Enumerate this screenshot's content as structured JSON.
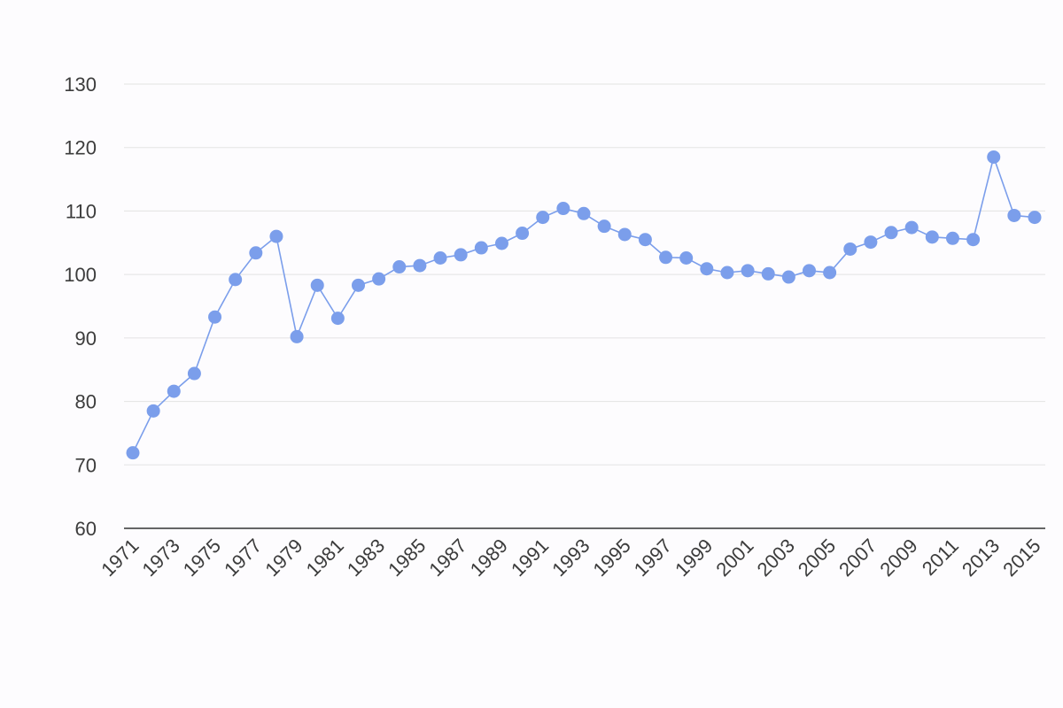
{
  "chart_data": {
    "type": "line",
    "title": "",
    "xlabel": "",
    "ylabel": "",
    "ylim": [
      60,
      130
    ],
    "y_ticks": [
      "60",
      "70",
      "80",
      "90",
      "100",
      "110",
      "120",
      "130"
    ],
    "x_ticks": [
      "1971",
      "1973",
      "1975",
      "1977",
      "1979",
      "1981",
      "1983",
      "1985",
      "1987",
      "1989",
      "1991",
      "1993",
      "1995",
      "1997",
      "1999",
      "2001",
      "2003",
      "2005",
      "2007",
      "2009",
      "2011",
      "2013",
      "2015"
    ],
    "x": [
      1971,
      1972,
      1973,
      1974,
      1975,
      1976,
      1977,
      1978,
      1979,
      1980,
      1981,
      1982,
      1983,
      1984,
      1985,
      1986,
      1987,
      1988,
      1989,
      1990,
      1991,
      1992,
      1993,
      1994,
      1995,
      1996,
      1997,
      1998,
      1999,
      2000,
      2001,
      2002,
      2003,
      2004,
      2005,
      2006,
      2007,
      2008,
      2009,
      2010,
      2011,
      2012,
      2013,
      2014,
      2015
    ],
    "series": [
      {
        "color": "#7b9eeb",
        "values": [
          71.9,
          78.5,
          81.6,
          84.4,
          93.3,
          99.2,
          103.4,
          106.0,
          90.2,
          98.3,
          93.1,
          98.3,
          99.3,
          101.2,
          101.4,
          102.6,
          103.1,
          104.2,
          104.9,
          106.5,
          109.0,
          110.4,
          109.6,
          107.6,
          106.3,
          105.5,
          102.7,
          102.6,
          100.9,
          100.3,
          100.6,
          100.1,
          99.6,
          100.6,
          100.3,
          104.0,
          105.1,
          106.6,
          107.4,
          105.9,
          105.7,
          105.5,
          118.5,
          109.3,
          109.0
        ]
      }
    ],
    "grid": true,
    "legend": "none"
  }
}
